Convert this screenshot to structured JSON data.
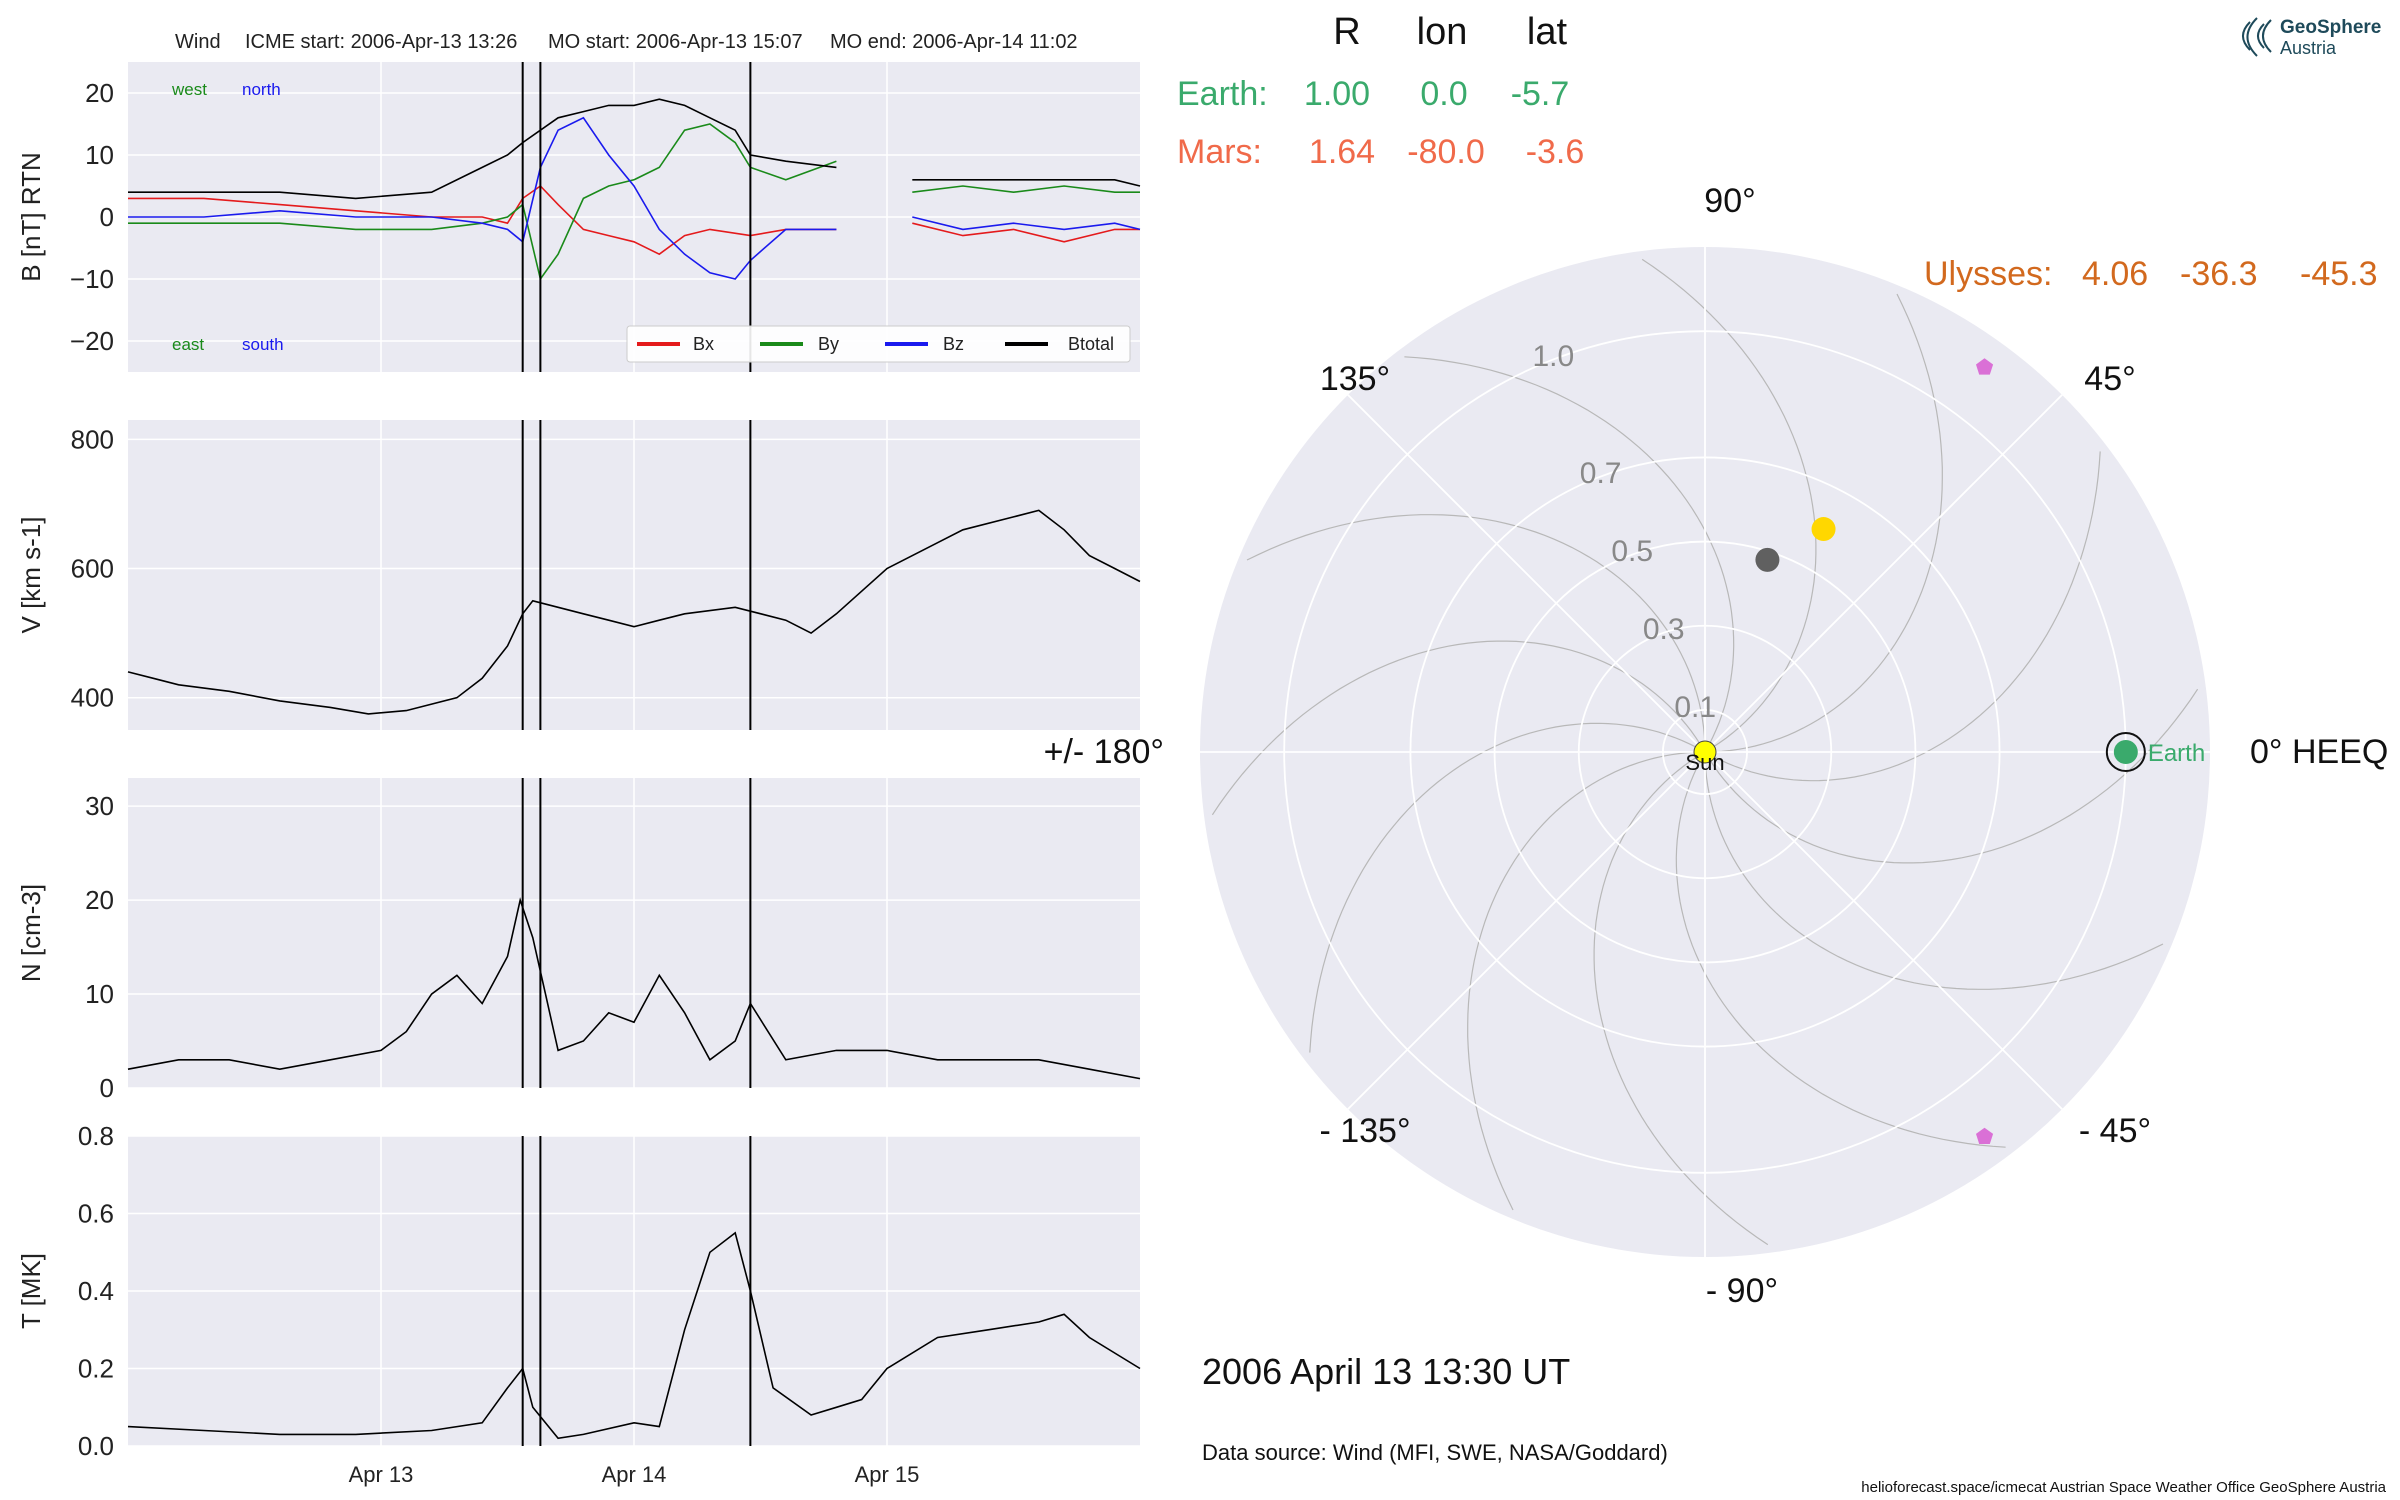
{
  "header": {
    "spacecraft": "Wind",
    "icme_start": "ICME start: 2006-Apr-13 13:26",
    "mo_start": "MO start: 2006-Apr-13 15:07",
    "mo_end": "MO end: 2006-Apr-14 11:02"
  },
  "position_table": {
    "columns": [
      "R",
      "lon",
      "lat"
    ],
    "rows": [
      {
        "name": "Earth:",
        "R": "1.00",
        "lon": "0.0",
        "lat": "-5.7",
        "color": "#3aaa6c"
      },
      {
        "name": "Mars:",
        "R": "1.64",
        "lon": "-80.0",
        "lat": "-3.6",
        "color": "#f06a4a"
      }
    ],
    "ulysses": {
      "name": "Ulysses:",
      "R": "4.06",
      "lon": "-36.3",
      "lat": "-45.3",
      "color": "#d2691e"
    }
  },
  "logo": {
    "line1": "GeoSphere",
    "line2": "Austria"
  },
  "footer": {
    "datetime": "2006 April 13  13:30 UT",
    "source": "Data source: Wind (MFI, SWE, NASA/Goddard)",
    "credits": "helioforecast.space/icmecat   Austrian Space Weather Office   GeoSphere Austria"
  },
  "chart_data": [
    {
      "type": "line",
      "ylabel": "B [nT] RTN",
      "ylim": [
        -25,
        25
      ],
      "yticks": [
        -20,
        -10,
        0,
        10,
        20
      ],
      "xlim": [
        0,
        4
      ],
      "xticks": [
        1,
        2,
        3
      ],
      "xtick_labels": [
        "Apr 13",
        "Apr 14",
        "Apr 15"
      ],
      "event_lines": [
        1.56,
        1.63,
        2.46
      ],
      "annotations": {
        "west": "west",
        "north": "north",
        "east": "east",
        "south": "south"
      },
      "legend": {
        "position": "bottom-right",
        "entries": [
          "Bx",
          "By",
          "Bz",
          "Btotal"
        ]
      },
      "series": [
        {
          "name": "Bx",
          "color": "#e41a1c",
          "x": [
            0,
            0.3,
            0.6,
            0.9,
            1.2,
            1.4,
            1.5,
            1.56,
            1.63,
            1.7,
            1.8,
            1.9,
            2.0,
            2.1,
            2.2,
            2.3,
            2.46,
            2.6,
            2.8,
            2.98,
            3.1,
            3.3,
            3.5,
            3.7,
            3.9,
            4.0
          ],
          "y": [
            3,
            3,
            2,
            1,
            0,
            0,
            -1,
            3,
            5,
            2,
            -2,
            -3,
            -4,
            -6,
            -3,
            -2,
            -3,
            -2,
            -2,
            null,
            -1,
            -3,
            -2,
            -4,
            -2,
            -2
          ]
        },
        {
          "name": "By",
          "color": "#1a8a1a",
          "x": [
            0,
            0.3,
            0.6,
            0.9,
            1.2,
            1.4,
            1.5,
            1.56,
            1.63,
            1.7,
            1.8,
            1.9,
            2.0,
            2.1,
            2.2,
            2.3,
            2.4,
            2.46,
            2.6,
            2.8,
            2.98,
            3.1,
            3.3,
            3.5,
            3.7,
            3.9,
            4.0
          ],
          "y": [
            -1,
            -1,
            -1,
            -2,
            -2,
            -1,
            0,
            2,
            -10,
            -6,
            3,
            5,
            6,
            8,
            14,
            15,
            12,
            8,
            6,
            9,
            null,
            4,
            5,
            4,
            5,
            4,
            4
          ]
        },
        {
          "name": "Bz",
          "color": "#1a1aee",
          "x": [
            0,
            0.3,
            0.6,
            0.9,
            1.2,
            1.4,
            1.5,
            1.56,
            1.63,
            1.7,
            1.8,
            1.9,
            2.0,
            2.1,
            2.2,
            2.3,
            2.4,
            2.46,
            2.6,
            2.8,
            2.98,
            3.1,
            3.3,
            3.5,
            3.7,
            3.9,
            4.0
          ],
          "y": [
            0,
            0,
            1,
            0,
            0,
            -1,
            -2,
            -4,
            8,
            14,
            16,
            10,
            5,
            -2,
            -6,
            -9,
            -10,
            -7,
            -2,
            -2,
            null,
            0,
            -2,
            -1,
            -2,
            -1,
            -2
          ]
        },
        {
          "name": "Btotal",
          "color": "#000000",
          "x": [
            0,
            0.3,
            0.6,
            0.9,
            1.2,
            1.4,
            1.5,
            1.56,
            1.63,
            1.7,
            1.8,
            1.9,
            2.0,
            2.1,
            2.2,
            2.3,
            2.4,
            2.46,
            2.6,
            2.8,
            2.98,
            3.1,
            3.3,
            3.5,
            3.7,
            3.9,
            4.0
          ],
          "y": [
            4,
            4,
            4,
            3,
            4,
            8,
            10,
            12,
            14,
            16,
            17,
            18,
            18,
            19,
            18,
            16,
            14,
            10,
            9,
            8,
            null,
            6,
            6,
            6,
            6,
            6,
            5
          ]
        }
      ]
    },
    {
      "type": "line",
      "ylabel": "V [km s-1]",
      "ylim": [
        350,
        830
      ],
      "yticks": [
        400,
        600,
        800
      ],
      "xlim": [
        0,
        4
      ],
      "xticks": [
        1,
        2,
        3
      ],
      "event_lines": [
        1.56,
        1.63,
        2.46
      ],
      "series": [
        {
          "name": "V",
          "color": "#000000",
          "x": [
            0,
            0.1,
            0.2,
            0.4,
            0.6,
            0.8,
            0.95,
            1.1,
            1.3,
            1.4,
            1.5,
            1.56,
            1.6,
            1.7,
            1.8,
            1.9,
            2.0,
            2.1,
            2.2,
            2.4,
            2.6,
            2.7,
            2.8,
            3.0,
            3.2,
            3.3,
            3.5,
            3.6,
            3.7,
            3.8,
            3.9,
            4.0
          ],
          "y": [
            440,
            430,
            420,
            410,
            395,
            385,
            375,
            380,
            400,
            430,
            480,
            530,
            550,
            540,
            530,
            520,
            510,
            520,
            530,
            540,
            520,
            500,
            530,
            600,
            640,
            660,
            680,
            690,
            660,
            620,
            600,
            580
          ]
        }
      ]
    },
    {
      "type": "line",
      "ylabel": "N [cm-3]",
      "ylim": [
        0,
        33
      ],
      "yticks": [
        0,
        10,
        20,
        30
      ],
      "xlim": [
        0,
        4
      ],
      "xticks": [
        1,
        2,
        3
      ],
      "event_lines": [
        1.56,
        1.63,
        2.46
      ],
      "series": [
        {
          "name": "N",
          "color": "#000000",
          "x": [
            0,
            0.2,
            0.4,
            0.6,
            0.8,
            1.0,
            1.1,
            1.2,
            1.3,
            1.4,
            1.5,
            1.55,
            1.6,
            1.65,
            1.7,
            1.8,
            1.9,
            2.0,
            2.1,
            2.2,
            2.3,
            2.4,
            2.46,
            2.6,
            2.8,
            3.0,
            3.2,
            3.4,
            3.6,
            3.8,
            4.0
          ],
          "y": [
            2,
            3,
            3,
            2,
            3,
            4,
            6,
            10,
            12,
            9,
            14,
            20,
            16,
            10,
            4,
            5,
            8,
            7,
            12,
            8,
            3,
            5,
            9,
            3,
            4,
            4,
            3,
            3,
            3,
            2,
            1
          ]
        }
      ]
    },
    {
      "type": "line",
      "ylabel": "T [MK]",
      "ylim": [
        0,
        0.8
      ],
      "yticks": [
        0.0,
        0.2,
        0.4,
        0.6,
        0.8
      ],
      "xlim": [
        0,
        4
      ],
      "xticks": [
        1,
        2,
        3
      ],
      "xtick_labels": [
        "Apr 13",
        "Apr 14",
        "Apr 15"
      ],
      "event_lines": [
        1.56,
        1.63,
        2.46
      ],
      "series": [
        {
          "name": "T",
          "color": "#000000",
          "x": [
            0,
            0.3,
            0.6,
            0.9,
            1.2,
            1.4,
            1.5,
            1.56,
            1.6,
            1.7,
            1.8,
            2.0,
            2.1,
            2.2,
            2.3,
            2.4,
            2.46,
            2.55,
            2.7,
            2.8,
            2.9,
            3.0,
            3.2,
            3.4,
            3.6,
            3.7,
            3.8,
            4.0
          ],
          "y": [
            0.05,
            0.04,
            0.03,
            0.03,
            0.04,
            0.06,
            0.15,
            0.2,
            0.1,
            0.02,
            0.03,
            0.06,
            0.05,
            0.3,
            0.5,
            0.55,
            0.4,
            0.15,
            0.08,
            0.1,
            0.12,
            0.2,
            0.28,
            0.3,
            0.32,
            0.34,
            0.28,
            0.2
          ]
        }
      ]
    },
    {
      "type": "scatter",
      "polar": true,
      "r_ticks": [
        0.1,
        0.3,
        0.5,
        0.7,
        1.0
      ],
      "r_max": 1.2,
      "angle_labels": {
        "0": "0° HEEQ",
        "45": "45°",
        "90": "90°",
        "135": "135°",
        "180": "+/- 180°",
        "-135": "- 135°",
        "-90": "- 90°",
        "-45": "- 45°"
      },
      "bodies": [
        {
          "name": "Sun",
          "lon": 0,
          "r": 0.0,
          "color": "#ffff00"
        },
        {
          "name": "Earth",
          "lon": 0,
          "r": 1.0,
          "color": "#3aaa6c",
          "label": "Earth"
        },
        {
          "name": "",
          "lon": 62,
          "r": 0.6,
          "color": "#ffd700"
        },
        {
          "name": "",
          "lon": 72,
          "r": 0.48,
          "color": "#606060"
        },
        {
          "name": "",
          "lon": 54,
          "r": 1.13,
          "color": "#da70d6"
        },
        {
          "name": "",
          "lon": -54,
          "r": 1.13,
          "color": "#da70d6"
        }
      ]
    }
  ]
}
